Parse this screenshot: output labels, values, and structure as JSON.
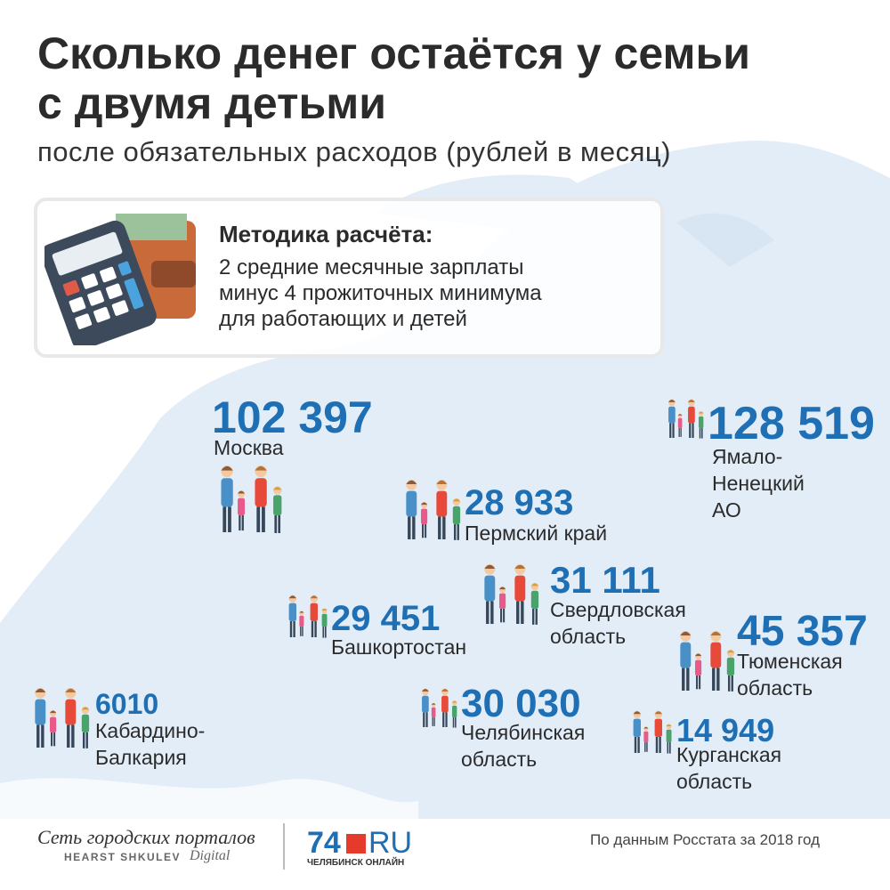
{
  "header": {
    "title_lines": [
      "Сколько денег остаётся у семьи",
      "с двумя детьми"
    ],
    "subtitle": "после обязательных расходов (рублей в месяц)"
  },
  "method": {
    "heading": "Методика расчёта:",
    "lines": [
      "2 средние месячные зарплаты",
      "минус 4 прожиточных минимума",
      "для работающих и детей"
    ]
  },
  "regions": [
    {
      "value": "102 397",
      "name": [
        "Москва"
      ]
    },
    {
      "value": "128 519",
      "name": [
        "Ямало-",
        "Ненецкий",
        "АО"
      ]
    },
    {
      "value": "28 933",
      "name": [
        "Пермский край"
      ]
    },
    {
      "value": "31 111",
      "name": [
        "Свердловская",
        "область"
      ]
    },
    {
      "value": "29 451",
      "name": [
        "Башкортостан"
      ]
    },
    {
      "value": "45 357",
      "name": [
        "Тюменская",
        "область"
      ]
    },
    {
      "value": "6010",
      "name": [
        "Кабардино-",
        "Балкария"
      ]
    },
    {
      "value": "30 030",
      "name": [
        "Челябинская",
        "область"
      ]
    },
    {
      "value": "14 949",
      "name": [
        "Курганская",
        "область"
      ]
    }
  ],
  "footer": {
    "network": "Сеть городских порталов",
    "brand": "HEARST SHKULEV",
    "brand_suffix": "Digital",
    "logo_number": "74",
    "logo_domain": "RU",
    "logo_city": "ЧЕЛЯБИНСК ОНЛАЙН",
    "source": "По данным Росстата за 2018 год"
  }
}
